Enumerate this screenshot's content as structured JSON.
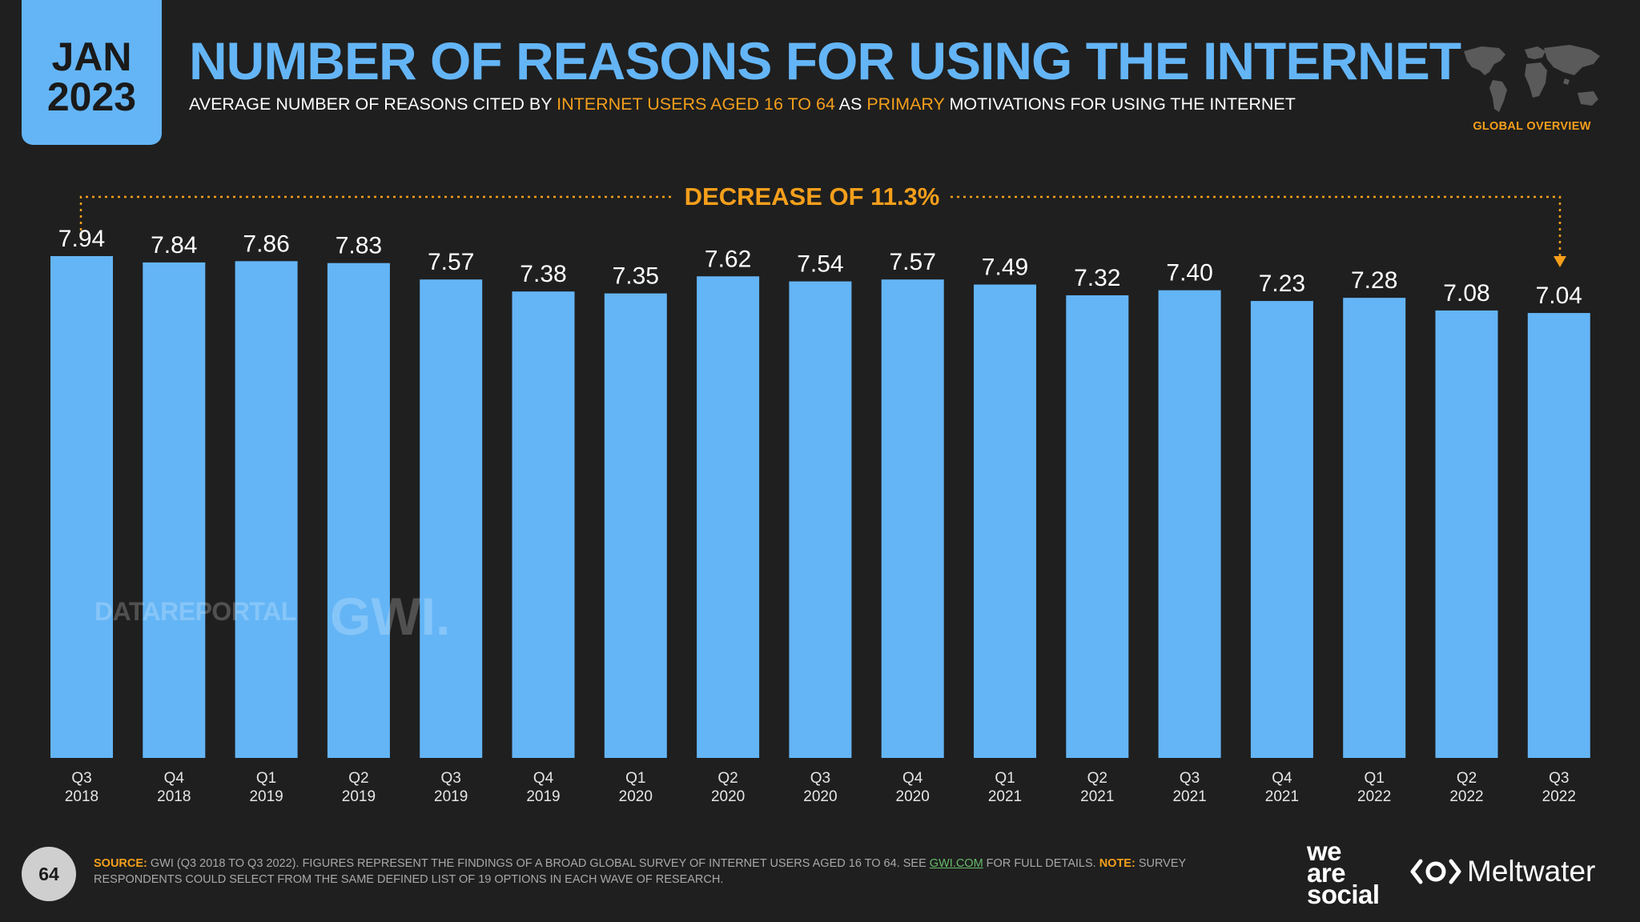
{
  "badge": {
    "month": "JAN",
    "year": "2023"
  },
  "header": {
    "title": "NUMBER OF REASONS FOR USING THE INTERNET",
    "subtitle_1": "AVERAGE NUMBER OF REASONS CITED BY ",
    "subtitle_hl_1": "INTERNET USERS AGED 16 TO 64",
    "subtitle_2": " AS ",
    "subtitle_hl_2": "PRIMARY",
    "subtitle_3": " MOTIVATIONS FOR USING THE INTERNET",
    "region": "GLOBAL OVERVIEW"
  },
  "annotation": {
    "text": "DECREASE OF 11.3%"
  },
  "watermarks": {
    "datareportal": "DATAREPORTAL",
    "gwi": "GWI."
  },
  "footer": {
    "page_number": "64",
    "source_label": "SOURCE:",
    "source_text_1": " GWI (Q3 2018 TO Q3 2022). FIGURES REPRESENT THE FINDINGS OF A BROAD GLOBAL SURVEY OF INTERNET USERS AGED 16 TO 64. SEE ",
    "source_link": "GWI.COM",
    "source_text_2": " FOR FULL DETAILS. ",
    "note_label": "NOTE:",
    "note_text": " SURVEY RESPONDENTS COULD SELECT FROM THE SAME DEFINED LIST OF 19 OPTIONS IN EACH WAVE OF RESEARCH.",
    "brand_1_line1": "we",
    "brand_1_line2": "are",
    "brand_1_line3": "social",
    "brand_2": "Meltwater"
  },
  "colors": {
    "bar": "#64b5f6",
    "accent": "#f59f1b",
    "background": "#1f1f1f"
  },
  "chart_data": {
    "type": "bar",
    "title": "NUMBER OF REASONS FOR USING THE INTERNET",
    "categories": [
      [
        "Q3",
        "2018"
      ],
      [
        "Q4",
        "2018"
      ],
      [
        "Q1",
        "2019"
      ],
      [
        "Q2",
        "2019"
      ],
      [
        "Q3",
        "2019"
      ],
      [
        "Q4",
        "2019"
      ],
      [
        "Q1",
        "2020"
      ],
      [
        "Q2",
        "2020"
      ],
      [
        "Q3",
        "2020"
      ],
      [
        "Q4",
        "2020"
      ],
      [
        "Q1",
        "2021"
      ],
      [
        "Q2",
        "2021"
      ],
      [
        "Q3",
        "2021"
      ],
      [
        "Q4",
        "2021"
      ],
      [
        "Q1",
        "2022"
      ],
      [
        "Q2",
        "2022"
      ],
      [
        "Q3",
        "2022"
      ]
    ],
    "values": [
      7.94,
      7.84,
      7.86,
      7.83,
      7.57,
      7.38,
      7.35,
      7.62,
      7.54,
      7.57,
      7.49,
      7.32,
      7.4,
      7.23,
      7.28,
      7.08,
      7.04
    ],
    "value_labels": [
      "7.94",
      "7.84",
      "7.86",
      "7.83",
      "7.57",
      "7.38",
      "7.35",
      "7.62",
      "7.54",
      "7.57",
      "7.49",
      "7.32",
      "7.40",
      "7.23",
      "7.28",
      "7.08",
      "7.04"
    ],
    "xlabel": "",
    "ylabel": "",
    "ylim": [
      0,
      7.94
    ],
    "grid": false,
    "legend": "none"
  }
}
